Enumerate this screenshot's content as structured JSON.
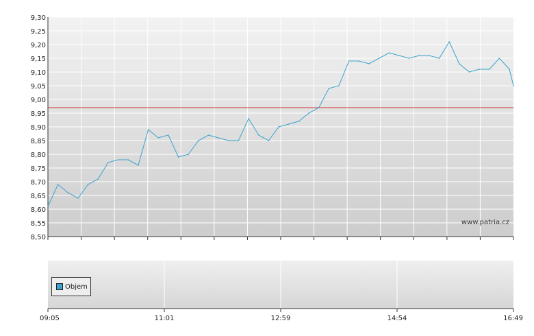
{
  "chart_data": [
    {
      "type": "line",
      "series": [
        {
          "color": "#3aa3cc",
          "x": [
            "09:05",
            "09:15",
            "09:25",
            "09:35",
            "09:45",
            "09:55",
            "10:05",
            "10:15",
            "10:25",
            "10:35",
            "10:45",
            "10:55",
            "11:05",
            "11:15",
            "11:25",
            "11:35",
            "11:45",
            "11:55",
            "12:05",
            "12:15",
            "12:25",
            "12:35",
            "12:45",
            "12:55",
            "13:05",
            "13:15",
            "13:25",
            "13:35",
            "13:45",
            "13:55",
            "14:05",
            "14:15",
            "14:25",
            "14:35",
            "14:45",
            "14:55",
            "15:05",
            "15:15",
            "15:25",
            "15:35",
            "15:45",
            "15:55",
            "16:05",
            "16:15",
            "16:25",
            "16:35",
            "16:45",
            "16:49"
          ],
          "y": [
            8.61,
            8.69,
            8.66,
            8.64,
            8.69,
            8.71,
            8.77,
            8.78,
            8.78,
            8.76,
            8.89,
            8.86,
            8.87,
            8.79,
            8.8,
            8.85,
            8.87,
            8.86,
            8.85,
            8.85,
            8.93,
            8.87,
            8.85,
            8.9,
            8.91,
            8.92,
            8.95,
            8.97,
            9.04,
            9.05,
            9.14,
            9.14,
            9.13,
            9.15,
            9.17,
            9.16,
            9.15,
            9.16,
            9.16,
            9.15,
            9.21,
            9.13,
            9.1,
            9.11,
            9.11,
            9.15,
            9.11,
            9.05
          ]
        }
      ],
      "reference_line": {
        "y": 8.97,
        "color": "#cc3333"
      },
      "ylim": [
        8.5,
        9.3
      ],
      "y_ticks": [
        "8,50",
        "8,55",
        "8,60",
        "8,65",
        "8,70",
        "8,75",
        "8,80",
        "8,85",
        "8,90",
        "8,95",
        "9,00",
        "9,05",
        "9,10",
        "9,15",
        "9,20",
        "9,25",
        "9,30"
      ],
      "grid": true,
      "watermark": "www.patria.cz"
    },
    {
      "type": "bar",
      "legend": [
        {
          "label": "Objem",
          "color": "#3aa3cc"
        }
      ],
      "x_ticks": [
        "09:05",
        "11:01",
        "12:59",
        "14:54",
        "16:49"
      ],
      "grid": true
    }
  ]
}
